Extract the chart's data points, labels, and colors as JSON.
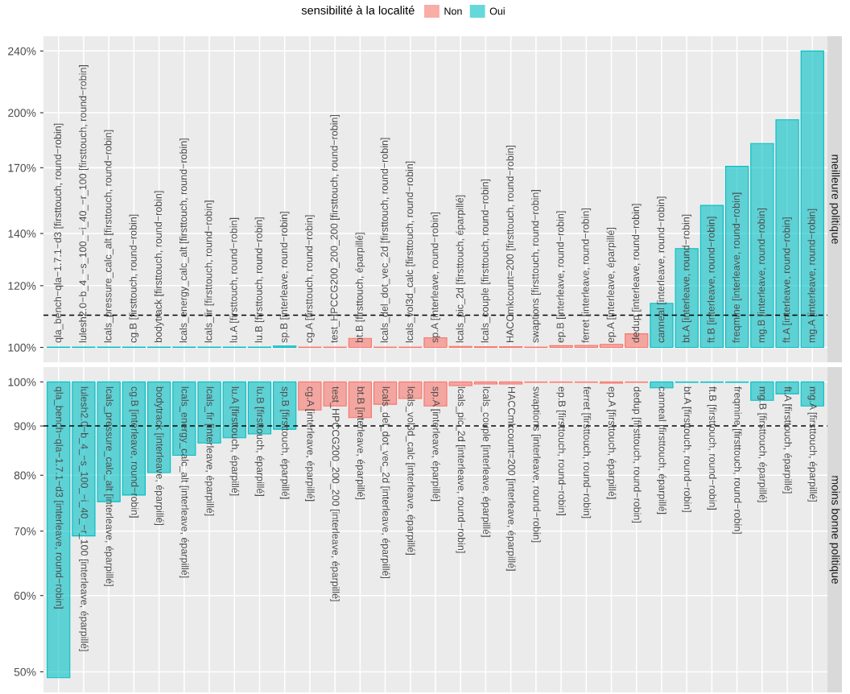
{
  "chart_data": [
    {
      "type": "bar",
      "title": "meilleure politique",
      "legend_title": "sensibilité à la localité",
      "legend": "top",
      "grid": true,
      "log": true,
      "categories": [
        "qla_bench−qla−1.7.1−d3 [firsttouch, round−robin]",
        "lulesh2.0−b_4_−s_100_−i_40_−r_100 [firsttouch, round−robin]",
        "lcals_pressure_calc_alt [firsttouch, round−robin]",
        "cg.B [firsttouch, round−robin]",
        "bodytrack [firsttouch, round−robin]",
        "lcals_energy_calc_alt [firsttouch, round−robin]",
        "lcals_fir [firsttouch, round−robin]",
        "lu.A [firsttouch, round−robin]",
        "lu.B [firsttouch, round−robin]",
        "sp.B [interleave, round−robin]",
        "cg.A [firsttouch, round−robin]",
        "test_HPCCG200_200_200 [firsttouch, round−robin]",
        "bt.B [firsttouch, éparpillé]",
        "lcals_del_dot_vec_2d [firsttouch, round−robin]",
        "lcals_vol3d_calc [firsttouch, round−robin]",
        "sp.A [interleave, round−robin]",
        "lcals_pic_2d [firsttouch, éparpillé]",
        "lcals_couple [firsttouch, round−robin]",
        "HACCmkcount=200 [firsttouch, round−robin]",
        "swaptions [firsttouch, round−robin]",
        "ep.B [interleave, round−robin]",
        "ferret [interleave, round−robin]",
        "ep.A [interleave, éparpillé]",
        "dedup [interleave, round−robin]",
        "canneal [interleave, round−robin]",
        "bt.A [interleave, round−robin]",
        "ft.B [interleave, round−robin]",
        "freqmine [interleave, round−robin]",
        "mg.B [interleave, round−robin]",
        "ft.A [interleave, round−robin]",
        "mg.A [interleave, round−robin]"
      ],
      "series": [
        {
          "name": "Non",
          "color": "#f8766d",
          "base": [
            null,
            null,
            null,
            null,
            null,
            null,
            null,
            null,
            null,
            null,
            100,
            100,
            100,
            100,
            100,
            100,
            100,
            100,
            100,
            100,
            100,
            100,
            100,
            100,
            null,
            null,
            null,
            null,
            null,
            null,
            null
          ],
          "values": [
            null,
            null,
            null,
            null,
            null,
            null,
            null,
            null,
            null,
            null,
            0.1,
            0.1,
            2.7,
            0.1,
            0.1,
            2.9,
            0.3,
            0.2,
            0.2,
            0.1,
            0.5,
            0.6,
            0.9,
            4.1,
            null,
            null,
            null,
            null,
            null,
            null,
            null
          ]
        },
        {
          "name": "Oui",
          "color": "#00bfc4",
          "base": [
            100,
            100,
            100,
            100,
            100,
            100,
            100,
            100,
            100,
            100,
            null,
            null,
            null,
            null,
            null,
            null,
            null,
            null,
            null,
            null,
            null,
            null,
            null,
            null,
            100,
            100,
            100,
            100,
            100,
            100,
            100
          ],
          "values": [
            0.1,
            0.1,
            0.1,
            0.1,
            0.1,
            0.1,
            0.1,
            0.1,
            0.1,
            0.4,
            null,
            null,
            null,
            null,
            null,
            null,
            null,
            null,
            null,
            null,
            null,
            null,
            null,
            null,
            13.9,
            33.9,
            52.1,
            70.7,
            82.6,
            95.9,
            140
          ]
        }
      ],
      "ylim": [
        95.7,
        250.7
      ],
      "yticks": [
        {
          "value": 100,
          "label": "100%"
        },
        {
          "value": 120,
          "label": "120%"
        },
        {
          "value": 140,
          "label": "140%"
        },
        {
          "value": 170,
          "label": "170%"
        },
        {
          "value": 200,
          "label": "200%"
        },
        {
          "value": 240,
          "label": "240%"
        }
      ],
      "ref_lines": [
        {
          "axis": "y",
          "value": 110,
          "color": "#000000",
          "line_style": "dashed"
        }
      ]
    },
    {
      "type": "bar",
      "title": "moins bonne politique",
      "grid": true,
      "log": true,
      "categories": [
        "qla_bench−qla−1.7.1−d3 [interleave, round−robin]",
        "lulesh2.0−b_4_−s_100_−i_40_−r_100 [interleave, éparpillé]",
        "lcals_pressure_calc_alt [interleave, éparpillé]",
        "cg.B [interleave, round−robin]",
        "bodytrack [interleave, éparpillé]",
        "lcals_energy_calc_alt [interleave, éparpillé]",
        "lcals_fir [interleave, éparpillé]",
        "lu.A [firsttouch, éparpillé]",
        "lu.B [firsttouch, éparpillé]",
        "sp.B [firsttouch, éparpillé]",
        "cg.A [interleave, éparpillé]",
        "test_HPCCG200_200_200 [interleave, éparpillé]",
        "bt.B [interleave, éparpillé]",
        "lcals_del_dot_vec_2d [interleave, éparpillé]",
        "lcals_vol3d_calc [interleave, éparpillé]",
        "sp.A [interleave, éparpillé]",
        "lcals_pic_2d [interleave, round−robin]",
        "lcals_couple [interleave, éparpillé]",
        "HACCmkcount=200 [interleave, éparpillé]",
        "swaptions [interleave, round−robin]",
        "ep.B [firsttouch, round−robin]",
        "ferret [firsttouch, round−robin]",
        "ep.A [firsttouch, éparpillé]",
        "dedup [firsttouch, round−robin]",
        "canneal [firsttouch, éparpillé]",
        "bt.A [firsttouch, round−robin]",
        "ft.B [firsttouch, round−robin]",
        "freqmine [firsttouch, round−robin]",
        "mg.B [firsttouch, éparpillé]",
        "ft.A [firsttouch, éparpillé]",
        "mg.A [firsttouch, éparpillé]"
      ],
      "series": [
        {
          "color": "#f8766d",
          "base": [
            null,
            null,
            null,
            null,
            null,
            null,
            null,
            null,
            null,
            null,
            100,
            100,
            100,
            100,
            100,
            100,
            100,
            100,
            100,
            100,
            100,
            100,
            100,
            100,
            null,
            null,
            null,
            null,
            null,
            null,
            null
          ],
          "values": [
            null,
            null,
            null,
            null,
            null,
            null,
            null,
            null,
            null,
            null,
            -6.5,
            -5.6,
            -8.2,
            -5.2,
            -3.9,
            -5.6,
            -0.9,
            -0.5,
            -0.5,
            -0.1,
            -0.1,
            -0.1,
            -0.3,
            -0.1,
            null,
            null,
            null,
            null,
            null,
            null,
            null
          ]
        },
        {
          "color": "#00bfc4",
          "base": [
            100,
            100,
            100,
            100,
            100,
            100,
            100,
            100,
            100,
            100,
            null,
            null,
            null,
            null,
            null,
            null,
            null,
            null,
            null,
            null,
            null,
            null,
            null,
            null,
            100,
            100,
            100,
            100,
            100,
            100,
            100
          ],
          "values": [
            -50.7,
            -30.8,
            -24.9,
            -23.7,
            -19.5,
            -16.1,
            -13.6,
            -12.5,
            -11.7,
            -10.7,
            null,
            null,
            null,
            null,
            null,
            null,
            null,
            null,
            null,
            null,
            null,
            null,
            null,
            null,
            -1.4,
            -0.1,
            -0.1,
            -0.1,
            -4.3,
            -2.8,
            -5.6
          ]
        }
      ],
      "ylim": [
        47.6,
        103.6
      ],
      "yticks": [
        {
          "value": 50,
          "label": "50%"
        },
        {
          "value": 60,
          "label": "60%"
        },
        {
          "value": 70,
          "label": "70%"
        },
        {
          "value": 80,
          "label": "80%"
        },
        {
          "value": 90,
          "label": "90%"
        },
        {
          "value": 100,
          "label": "100%"
        }
      ],
      "ref_lines": [
        {
          "axis": "y",
          "value": 90,
          "color": "#000000",
          "line_style": "dashed"
        }
      ]
    }
  ]
}
